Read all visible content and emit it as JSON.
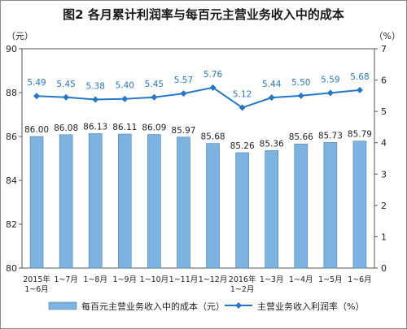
{
  "chart_data": {
    "type": "bar",
    "title": "图2  各月累计利润率与每百元主营业务收入中的成本",
    "y_left_unit": "（元）",
    "y_right_unit": "（%）",
    "ylim_left": [
      80,
      90
    ],
    "yticks_left": [
      "80",
      "82",
      "84",
      "86",
      "88",
      "90"
    ],
    "ylim_right": [
      0,
      7
    ],
    "yticks_right": [
      "0",
      "1",
      "2",
      "3",
      "4",
      "5",
      "6",
      "7"
    ],
    "grid": false,
    "legend_position": "bottom",
    "categories": [
      [
        "2015年",
        "1~6月"
      ],
      [
        "1~7月"
      ],
      [
        "1~8月"
      ],
      [
        "1~9月"
      ],
      [
        "1~10月"
      ],
      [
        "1~11月"
      ],
      [
        "1~12月"
      ],
      [
        "2016年",
        "1~2月"
      ],
      [
        "1~3月"
      ],
      [
        "1~4月"
      ],
      [
        "1~5月"
      ],
      [
        "1~6月"
      ]
    ],
    "series": [
      {
        "name": "每百元主营业务收入中的成本（元）",
        "kind": "bar",
        "axis": "left",
        "color": "#7db3e0",
        "values": [
          86.0,
          86.08,
          86.13,
          86.11,
          86.09,
          85.97,
          85.68,
          85.26,
          85.36,
          85.66,
          85.73,
          85.79
        ],
        "labels": [
          "86.00",
          "86.08",
          "86.13",
          "86.11",
          "86.09",
          "85.97",
          "85.68",
          "85.26",
          "85.36",
          "85.66",
          "85.73",
          "85.79"
        ]
      },
      {
        "name": "主营业务收入利润率（%）",
        "kind": "line",
        "axis": "right",
        "color": "#2677c8",
        "values": [
          5.49,
          5.45,
          5.38,
          5.4,
          5.45,
          5.57,
          5.76,
          5.12,
          5.44,
          5.5,
          5.59,
          5.68
        ],
        "labels": [
          "5.49",
          "5.45",
          "5.38",
          "5.40",
          "5.45",
          "5.57",
          "5.76",
          "5.12",
          "5.44",
          "5.50",
          "5.59",
          "5.68"
        ]
      }
    ]
  }
}
